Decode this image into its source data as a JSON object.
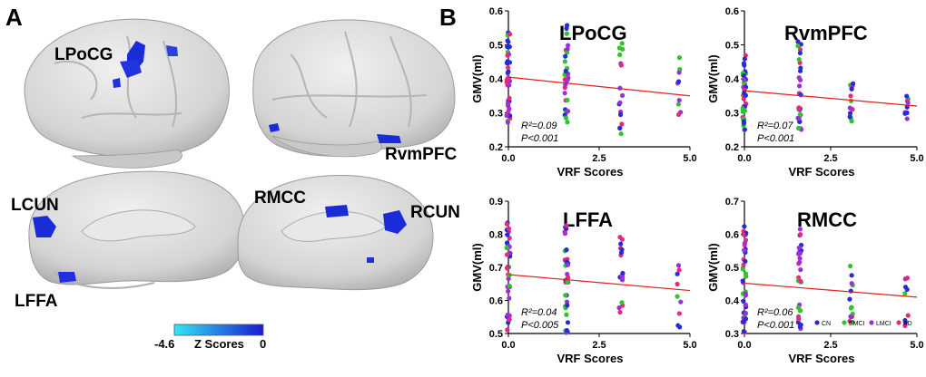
{
  "panel_a": {
    "letter": "A",
    "region_labels": [
      "LPoCG",
      "RvmPFC",
      "LCUN",
      "RMCC",
      "RCUN",
      "LFFA"
    ],
    "colorbar": {
      "min_label": "-4.6",
      "title": "Z Scores",
      "max_label": "0",
      "color_low": "#33e6f5",
      "color_high": "#1a1ad0"
    }
  },
  "panel_b": {
    "letter": "B",
    "legend": [
      {
        "name": "CN",
        "color": "#2b2bd6"
      },
      {
        "name": "EMCI",
        "color": "#2ec42e"
      },
      {
        "name": "LMCI",
        "color": "#9b30d9"
      },
      {
        "name": "AD",
        "color": "#e8287a"
      }
    ]
  },
  "chart_data": [
    {
      "type": "scatter",
      "title": "LPoCG",
      "xlabel": "VRF Scores",
      "ylabel": "GMV(ml)",
      "xlim": [
        0,
        5
      ],
      "ylim": [
        0.2,
        0.6
      ],
      "xticks": [
        "0.0",
        "2.5",
        "5.0"
      ],
      "yticks": [
        "0.2",
        "0.3",
        "0.4",
        "0.5",
        "0.6"
      ],
      "annotation": {
        "r2": "R²=0.09",
        "p": "P<0.001"
      },
      "fit_line": {
        "x": [
          0,
          5
        ],
        "y": [
          0.405,
          0.35
        ]
      },
      "cols": [
        0,
        1.6,
        3.1,
        4.7
      ],
      "ymin": [
        0.27,
        0.27,
        0.23,
        0.27
      ],
      "ymax": [
        0.54,
        0.56,
        0.52,
        0.47
      ],
      "counts": [
        40,
        32,
        16,
        9
      ]
    },
    {
      "type": "scatter",
      "title": "RvmPFC",
      "xlabel": "VRF Scores",
      "ylabel": "GMV(ml)",
      "xlim": [
        0,
        5
      ],
      "ylim": [
        0.2,
        0.6
      ],
      "xticks": [
        "0.0",
        "2.5",
        "5.0"
      ],
      "yticks": [
        "0.2",
        "0.3",
        "0.4",
        "0.5",
        "0.6"
      ],
      "annotation": {
        "r2": "R²=0.07",
        "p": "P<0.001"
      },
      "fit_line": {
        "x": [
          0,
          5
        ],
        "y": [
          0.365,
          0.32
        ]
      },
      "cols": [
        0,
        1.6,
        3.1,
        4.7
      ],
      "ymin": [
        0.25,
        0.25,
        0.26,
        0.24
      ],
      "ymax": [
        0.47,
        0.51,
        0.42,
        0.36
      ],
      "counts": [
        40,
        32,
        14,
        9
      ]
    },
    {
      "type": "scatter",
      "title": "LFFA",
      "xlabel": "VRF Scores",
      "ylabel": "GMV(ml)",
      "xlim": [
        0,
        5
      ],
      "ylim": [
        0.5,
        0.9
      ],
      "xticks": [
        "0.0",
        "2.5",
        "5.0"
      ],
      "yticks": [
        "0.5",
        "0.6",
        "0.7",
        "0.8",
        "0.9"
      ],
      "annotation": {
        "r2": "R²=0.04",
        "p": "P<0.005"
      },
      "fit_line": {
        "x": [
          0,
          5
        ],
        "y": [
          0.678,
          0.63
        ]
      },
      "cols": [
        0,
        1.6,
        3.1,
        4.7
      ],
      "ymin": [
        0.51,
        0.5,
        0.56,
        0.51
      ],
      "ymax": [
        0.84,
        0.83,
        0.8,
        0.71
      ],
      "counts": [
        40,
        32,
        16,
        9
      ]
    },
    {
      "type": "scatter",
      "title": "RMCC",
      "xlabel": "VRF Scores",
      "ylabel": "GMV(ml)",
      "xlim": [
        0,
        5
      ],
      "ylim": [
        0.3,
        0.7
      ],
      "xticks": [
        "0.0",
        "2.5",
        "5.0"
      ],
      "yticks": [
        "0.3",
        "0.4",
        "0.5",
        "0.6",
        "0.7"
      ],
      "annotation": {
        "r2": "R²=0.06",
        "p": "P<0.001"
      },
      "fit_line": {
        "x": [
          0,
          5
        ],
        "y": [
          0.452,
          0.41
        ]
      },
      "cols": [
        0,
        1.6,
        3.1,
        4.7
      ],
      "ymin": [
        0.3,
        0.31,
        0.33,
        0.31
      ],
      "ymax": [
        0.63,
        0.62,
        0.52,
        0.47
      ],
      "counts": [
        40,
        32,
        14,
        9
      ]
    }
  ]
}
